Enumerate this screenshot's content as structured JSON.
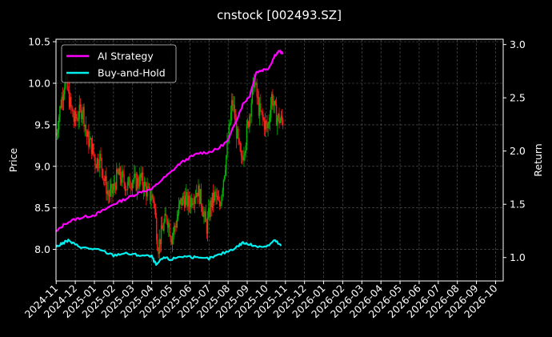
{
  "chart_data": {
    "type": "line",
    "title": "cnstock [002493.SZ]",
    "ylabel_left": "Price",
    "ylabel_right": "Return",
    "x_ticks": [
      "2024-11",
      "2024-12",
      "2025-01",
      "2025-02",
      "2025-03",
      "2025-04",
      "2025-05",
      "2025-06",
      "2025-07",
      "2025-08",
      "2025-09",
      "2025-10",
      "2025-11",
      "2025-12",
      "2026-01",
      "2026-02",
      "2026-03",
      "2026-04",
      "2026-05",
      "2026-06",
      "2026-07",
      "2026-08",
      "2026-09",
      "2026-10"
    ],
    "x_range": [
      "2024-11",
      "2026-10"
    ],
    "y_left": {
      "lim": [
        7.62,
        10.53
      ],
      "ticks": [
        8.0,
        8.5,
        9.0,
        9.5,
        10.0,
        10.5
      ]
    },
    "y_right": {
      "lim": [
        0.78,
        3.05
      ],
      "ticks": [
        1.0,
        1.5,
        2.0,
        2.5,
        3.0
      ]
    },
    "grid": true,
    "legend_position": "top-left",
    "colors": {
      "up": "#00b400",
      "down": "#ff1a1a",
      "ai": "#ff00ff",
      "bh": "#00f0f0"
    },
    "price_path": [
      [
        "2024-11-01",
        9.38
      ],
      [
        "2024-11-08",
        9.75
      ],
      [
        "2024-11-15",
        10.05
      ],
      [
        "2024-11-22",
        9.78
      ],
      [
        "2024-11-29",
        9.55
      ],
      [
        "2024-12-06",
        9.62
      ],
      [
        "2024-12-13",
        9.7
      ],
      [
        "2024-12-20",
        9.35
      ],
      [
        "2024-12-27",
        9.25
      ],
      [
        "2025-01-03",
        9.05
      ],
      [
        "2025-01-10",
        9.1
      ],
      [
        "2025-01-17",
        8.85
      ],
      [
        "2025-01-24",
        8.65
      ],
      [
        "2025-01-31",
        8.7
      ],
      [
        "2025-02-07",
        8.9
      ],
      [
        "2025-02-14",
        8.85
      ],
      [
        "2025-02-21",
        8.75
      ],
      [
        "2025-02-28",
        8.85
      ],
      [
        "2025-03-07",
        8.8
      ],
      [
        "2025-03-14",
        8.85
      ],
      [
        "2025-03-21",
        8.75
      ],
      [
        "2025-03-28",
        8.65
      ],
      [
        "2025-04-04",
        8.62
      ],
      [
        "2025-04-11",
        8.02
      ],
      [
        "2025-04-18",
        8.25
      ],
      [
        "2025-04-25",
        8.4
      ],
      [
        "2025-05-02",
        8.15
      ],
      [
        "2025-05-09",
        8.3
      ],
      [
        "2025-05-16",
        8.55
      ],
      [
        "2025-05-23",
        8.62
      ],
      [
        "2025-05-30",
        8.55
      ],
      [
        "2025-06-06",
        8.65
      ],
      [
        "2025-06-13",
        8.72
      ],
      [
        "2025-06-20",
        8.55
      ],
      [
        "2025-06-27",
        8.25
      ],
      [
        "2025-07-04",
        8.55
      ],
      [
        "2025-07-11",
        8.65
      ],
      [
        "2025-07-18",
        8.5
      ],
      [
        "2025-07-25",
        8.9
      ],
      [
        "2025-08-01",
        9.3
      ],
      [
        "2025-08-08",
        9.8
      ],
      [
        "2025-08-15",
        9.4
      ],
      [
        "2025-08-22",
        9.05
      ],
      [
        "2025-08-29",
        9.3
      ],
      [
        "2025-09-05",
        9.65
      ],
      [
        "2025-09-12",
        10.05
      ],
      [
        "2025-09-19",
        9.7
      ],
      [
        "2025-09-26",
        9.55
      ],
      [
        "2025-10-03",
        9.45
      ],
      [
        "2025-10-10",
        9.85
      ],
      [
        "2025-10-17",
        9.6
      ],
      [
        "2025-10-24",
        9.55
      ]
    ],
    "series": [
      {
        "name": "AI Strategy",
        "points": [
          [
            "2024-11-01",
            1.24
          ],
          [
            "2024-11-15",
            1.32
          ],
          [
            "2024-12-01",
            1.36
          ],
          [
            "2024-12-15",
            1.38
          ],
          [
            "2025-01-01",
            1.4
          ],
          [
            "2025-01-15",
            1.44
          ],
          [
            "2025-02-01",
            1.5
          ],
          [
            "2025-02-15",
            1.54
          ],
          [
            "2025-03-01",
            1.58
          ],
          [
            "2025-03-15",
            1.62
          ],
          [
            "2025-04-01",
            1.64
          ],
          [
            "2025-04-15",
            1.72
          ],
          [
            "2025-05-01",
            1.8
          ],
          [
            "2025-05-15",
            1.88
          ],
          [
            "2025-06-01",
            1.94
          ],
          [
            "2025-06-15",
            1.98
          ],
          [
            "2025-07-01",
            1.99
          ],
          [
            "2025-07-15",
            2.02
          ],
          [
            "2025-08-01",
            2.1
          ],
          [
            "2025-08-15",
            2.3
          ],
          [
            "2025-08-25",
            2.44
          ],
          [
            "2025-09-05",
            2.52
          ],
          [
            "2025-09-15",
            2.74
          ],
          [
            "2025-09-25",
            2.76
          ],
          [
            "2025-10-05",
            2.78
          ],
          [
            "2025-10-15",
            2.9
          ],
          [
            "2025-10-22",
            2.94
          ],
          [
            "2025-10-28",
            2.91
          ]
        ]
      },
      {
        "name": "Buy-and-Hold",
        "points": [
          [
            "2024-11-01",
            1.1
          ],
          [
            "2024-11-10",
            1.13
          ],
          [
            "2024-11-20",
            1.16
          ],
          [
            "2024-12-01",
            1.12
          ],
          [
            "2024-12-15",
            1.09
          ],
          [
            "2025-01-01",
            1.08
          ],
          [
            "2025-01-15",
            1.06
          ],
          [
            "2025-02-01",
            1.02
          ],
          [
            "2025-02-15",
            1.04
          ],
          [
            "2025-03-01",
            1.03
          ],
          [
            "2025-03-15",
            1.02
          ],
          [
            "2025-04-01",
            1.01
          ],
          [
            "2025-04-08",
            0.93
          ],
          [
            "2025-04-20",
            1.0
          ],
          [
            "2025-05-01",
            0.98
          ],
          [
            "2025-05-15",
            1.01
          ],
          [
            "2025-06-01",
            1.01
          ],
          [
            "2025-06-15",
            0.99
          ],
          [
            "2025-07-01",
            0.99
          ],
          [
            "2025-07-15",
            1.02
          ],
          [
            "2025-08-01",
            1.06
          ],
          [
            "2025-08-15",
            1.1
          ],
          [
            "2025-08-25",
            1.14
          ],
          [
            "2025-09-05",
            1.12
          ],
          [
            "2025-09-15",
            1.11
          ],
          [
            "2025-10-01",
            1.1
          ],
          [
            "2025-10-15",
            1.16
          ],
          [
            "2025-10-25",
            1.11
          ]
        ]
      }
    ]
  }
}
